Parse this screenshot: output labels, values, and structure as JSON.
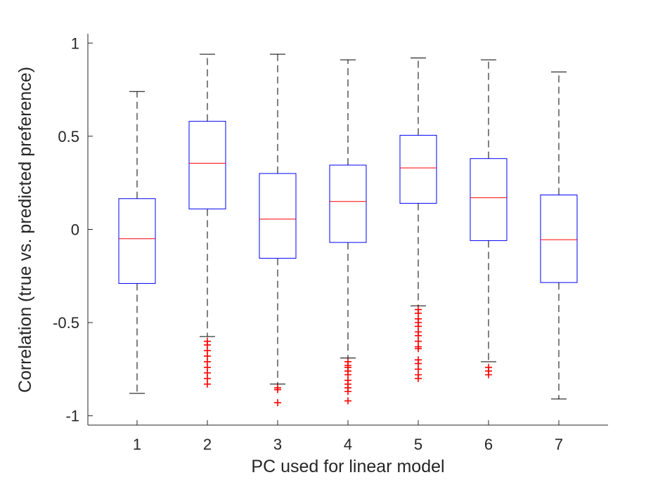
{
  "chart_data": {
    "type": "box",
    "xlabel": "PC used for linear model",
    "ylabel": "Correlation (true vs. predicted preference)",
    "categories": [
      "1",
      "2",
      "3",
      "4",
      "5",
      "6",
      "7"
    ],
    "ylim": [
      -1.05,
      1.05
    ],
    "yticks": [
      -1,
      -0.5,
      0,
      0.5,
      1
    ],
    "ytick_labels": [
      "-1",
      "-0.5",
      "0",
      "0.5",
      "1"
    ],
    "grid": false,
    "legend": "none",
    "colors": {
      "box": "#0000ff",
      "median": "#ff0000",
      "whisker": "#000000",
      "outlier": "#ff0000",
      "axis": "#262626"
    },
    "boxes": [
      {
        "category": "1",
        "whisker_low": -0.88,
        "q1": -0.29,
        "median": -0.05,
        "q3": 0.165,
        "whisker_high": 0.74,
        "outliers": []
      },
      {
        "category": "2",
        "whisker_low": -0.575,
        "q1": 0.11,
        "median": 0.355,
        "q3": 0.58,
        "whisker_high": 0.94,
        "outliers": [
          -0.6,
          -0.62,
          -0.65,
          -0.68,
          -0.71,
          -0.74,
          -0.77,
          -0.8,
          -0.83
        ]
      },
      {
        "category": "3",
        "whisker_low": -0.83,
        "q1": -0.155,
        "median": 0.055,
        "q3": 0.3,
        "whisker_high": 0.94,
        "outliers": [
          -0.85,
          -0.86,
          -0.93
        ]
      },
      {
        "category": "4",
        "whisker_low": -0.69,
        "q1": -0.07,
        "median": 0.15,
        "q3": 0.345,
        "whisker_high": 0.91,
        "outliers": [
          -0.71,
          -0.73,
          -0.74,
          -0.76,
          -0.78,
          -0.81,
          -0.83,
          -0.85,
          -0.87,
          -0.92
        ]
      },
      {
        "category": "5",
        "whisker_low": -0.41,
        "q1": 0.14,
        "median": 0.33,
        "q3": 0.505,
        "whisker_high": 0.92,
        "outliers": [
          -0.43,
          -0.45,
          -0.48,
          -0.5,
          -0.52,
          -0.55,
          -0.57,
          -0.6,
          -0.63,
          -0.64,
          -0.7,
          -0.72,
          -0.75,
          -0.78,
          -0.8
        ]
      },
      {
        "category": "6",
        "whisker_low": -0.71,
        "q1": -0.06,
        "median": 0.17,
        "q3": 0.38,
        "whisker_high": 0.91,
        "outliers": [
          -0.74,
          -0.76,
          -0.78
        ]
      },
      {
        "category": "7",
        "whisker_low": -0.91,
        "q1": -0.285,
        "median": -0.055,
        "q3": 0.185,
        "whisker_high": 0.845,
        "outliers": []
      }
    ]
  }
}
